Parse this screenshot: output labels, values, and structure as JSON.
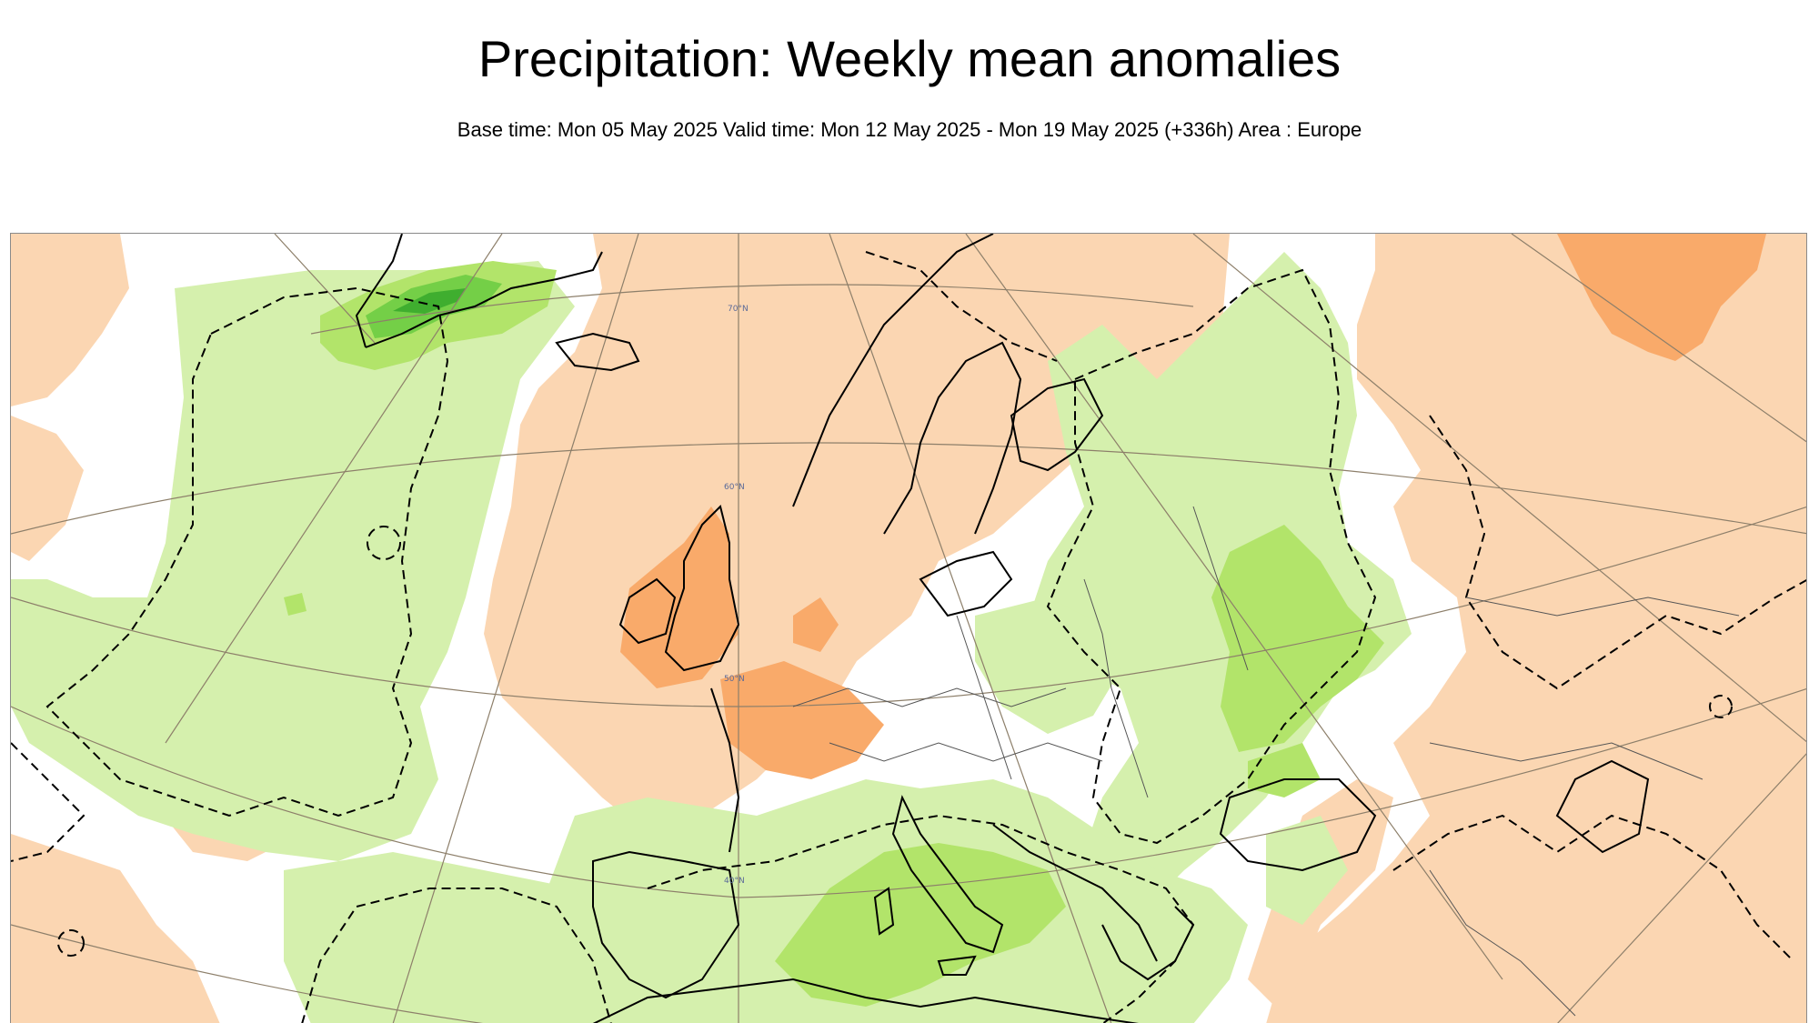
{
  "title": "Precipitation: Weekly mean anomalies",
  "subtitle": "Base time: Mon 05 May 2025 Valid time: Mon 12 May 2025 - Mon 19 May 2025 (+336h) Area : Europe",
  "map": {
    "area": "Europe",
    "latitude_labels": [
      "70°N",
      "60°N",
      "50°N",
      "40°N"
    ],
    "colors": {
      "dry_light": "#fbd6b2",
      "dry_medium": "#f9aa6a",
      "wet_light": "#d5f0ad",
      "wet_medium": "#b2e46a",
      "wet_strong": "#74cf47",
      "wet_darkest": "#3fae2f",
      "coastline": "#000000",
      "graticule": "#8d7f6a",
      "significance_contour": "#000000"
    }
  }
}
